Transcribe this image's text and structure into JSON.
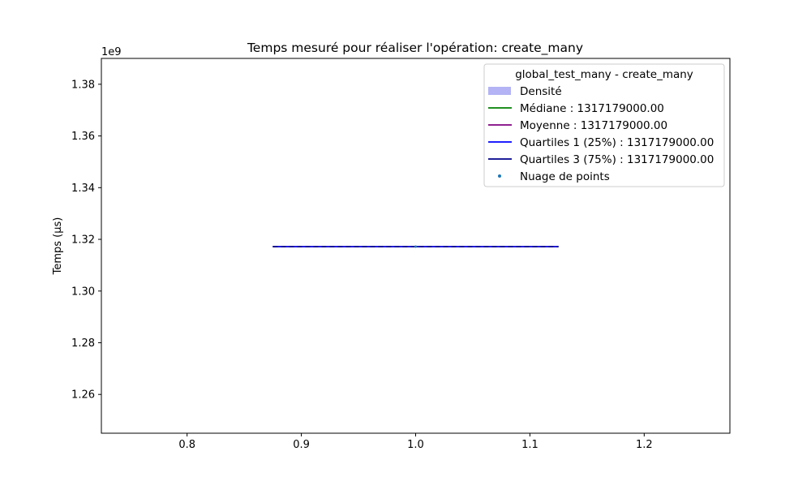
{
  "chart_data": {
    "type": "violin",
    "title": "Temps mesuré pour réaliser l'opération: create_many",
    "xlabel": "",
    "ylabel": "Temps (µs)",
    "y_offset_label": "1e9",
    "xlim": [
      0.725,
      1.275
    ],
    "ylim": [
      1245000000.0,
      1390000000.0
    ],
    "x_ticks": [
      0.8,
      0.9,
      1.0,
      1.1,
      1.2
    ],
    "x_tick_labels": [
      "0.8",
      "0.9",
      "1.0",
      "1.1",
      "1.2"
    ],
    "y_ticks": [
      1260000000.0,
      1280000000.0,
      1300000000.0,
      1320000000.0,
      1340000000.0,
      1360000000.0,
      1380000000.0
    ],
    "y_tick_labels": [
      "1.26",
      "1.28",
      "1.30",
      "1.32",
      "1.34",
      "1.36",
      "1.38"
    ],
    "series": [
      {
        "category": 1.0,
        "half_width": 0.125,
        "median": 1317179000.0,
        "mean": 1317179000.0,
        "q1": 1317179000.0,
        "q3": 1317179000.0,
        "points": [
          1317179000.0
        ]
      }
    ],
    "legend": {
      "placement": "top-right",
      "title": "global_test_many - create_many",
      "entries": [
        {
          "label": "Densité",
          "kind": "patch",
          "color": "#b3b3f5"
        },
        {
          "label": "Médiane : 1317179000.00",
          "kind": "line",
          "color": "#008000"
        },
        {
          "label": "Moyenne : 1317179000.00",
          "kind": "line",
          "color": "#800080"
        },
        {
          "label": "Quartiles 1 (25%) : 1317179000.00",
          "kind": "line",
          "color": "#0000ff"
        },
        {
          "label": "Quartiles 3 (75%) : 1317179000.00",
          "kind": "line",
          "color": "#00008b"
        },
        {
          "label": "Nuage de points",
          "kind": "marker",
          "color": "#1f77b4"
        }
      ]
    }
  }
}
